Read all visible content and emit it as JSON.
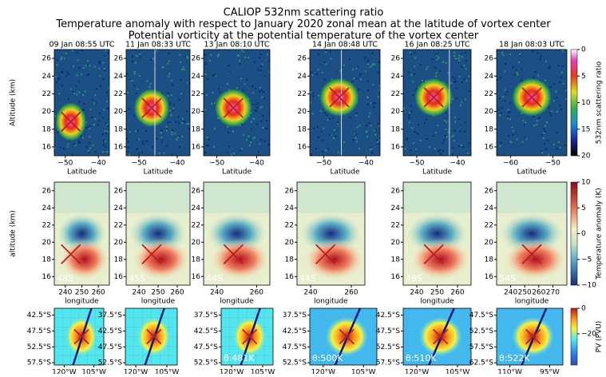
{
  "figure": {
    "title_lines": [
      "CALIOP 532nm scattering ratio",
      "Temperature anomaly with respect to January 2020 zonal mean at the latitude of vortex center",
      "Potential vorticity at the potential temperature of the vortex center"
    ],
    "panel_titles": [
      "09 Jan 08:55 UTC",
      "11 Jan 08:33 UTC",
      "13 Jan 08:10 UTC",
      "14 Jan 08:48 UTC",
      "16 Jan 08:25 UTC",
      "18 Jan 08:03 UTC"
    ],
    "rows": [
      {
        "ylabel": "Altitude (km)",
        "xlabel": "Latitude",
        "yticks": [
          "16",
          "18",
          "20",
          "22",
          "24",
          "26"
        ],
        "xticks": [
          [
            "−50",
            "−40"
          ],
          [
            "−50",
            "−40"
          ],
          [
            "−50",
            "−40"
          ],
          [
            "−50",
            "−40"
          ],
          [
            "−50",
            "−40"
          ],
          [
            "−60",
            "−50"
          ]
        ],
        "colorbar": {
          "label": "532nm scattering ratio",
          "ticks": [
            "0",
            "5",
            "10",
            "15",
            "20"
          ]
        }
      },
      {
        "ylabel": "altitude (km)",
        "xlabel": "longitude",
        "yticks": [
          "16",
          "18",
          "20",
          "22",
          "24",
          "26"
        ],
        "xticks": [
          [
            "240",
            "250",
            "260"
          ],
          [
            "240",
            "250",
            "260"
          ],
          [
            "240",
            "260"
          ],
          [
            "240",
            "260"
          ],
          [
            "240",
            "250",
            "260"
          ],
          [
            "240",
            "250",
            "260",
            "270"
          ]
        ],
        "panel_labels": [
          "48S",
          "45S",
          "44S",
          "44S",
          "49S",
          "54S"
        ],
        "colorbar": {
          "label": "Temperature anomaly (K)",
          "ticks": [
            "10",
            "5",
            "0",
            "−5",
            "−10"
          ]
        }
      },
      {
        "yticks": [
          [
            "42.5°S",
            "47.5°S",
            "52.5°S",
            "57.5°S"
          ],
          [
            "37.5°S",
            "42.5°S",
            "47.5°S",
            "52.5°S"
          ],
          [
            "37.5°S",
            "42.5°S",
            "47.5°S",
            "52.5°S"
          ],
          [
            "37.5°S",
            "42.5°S",
            "47.5°S",
            "52.5°S"
          ],
          [
            "42.5°S",
            "47.5°S",
            "52.5°S",
            "57.5°S"
          ],
          [
            "47.5°S",
            "52.5°S",
            "57.5°S",
            "62.5°S"
          ]
        ],
        "xticks": [
          [
            "120°W",
            "105°W"
          ],
          [
            "120°W",
            "105°W"
          ],
          [
            "120°W",
            "105°W"
          ],
          [
            "120°W",
            "105°W"
          ],
          [
            "120°W",
            "105°W"
          ],
          [
            "110°W",
            "95°W"
          ]
        ],
        "panel_labels": [
          null,
          null,
          "θ:481K",
          "θ:500K",
          "θ:510K",
          "θ:522K"
        ],
        "colorbar": {
          "label": "PV (PVU)",
          "ticks": [
            "0",
            "−20"
          ]
        }
      }
    ]
  }
}
